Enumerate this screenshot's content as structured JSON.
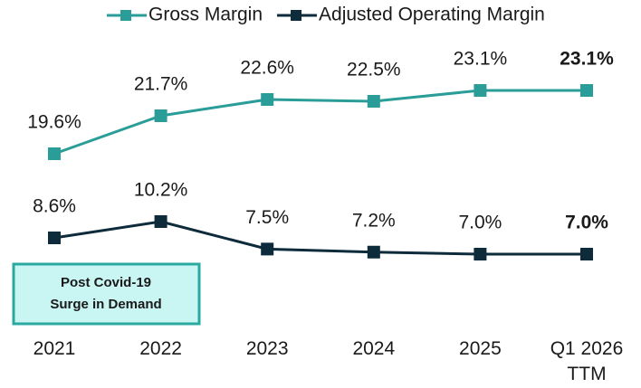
{
  "chart_data": {
    "type": "line",
    "categories": [
      "2021",
      "2022",
      "2023",
      "2024",
      "2025",
      "Q1 2026\nTTM"
    ],
    "series": [
      {
        "name": "Gross Margin",
        "color": "#2a9d98",
        "values": [
          19.6,
          21.7,
          22.6,
          22.5,
          23.1,
          23.1
        ],
        "value_labels": [
          "19.6%",
          "21.7%",
          "22.6%",
          "22.5%",
          "23.1%",
          "23.1%"
        ]
      },
      {
        "name": "Adjusted Operating Margin",
        "color": "#0d2b3a",
        "axis": "y2",
        "values": [
          8.6,
          10.2,
          7.5,
          7.2,
          7.0,
          7.0
        ],
        "value_labels": [
          "8.6%",
          "10.2%",
          "7.5%",
          "7.2%",
          "7.0%",
          "7.0%"
        ]
      }
    ],
    "annotations": [
      "Post Covid-19\nSurge in Demand"
    ],
    "legend": "top"
  }
}
